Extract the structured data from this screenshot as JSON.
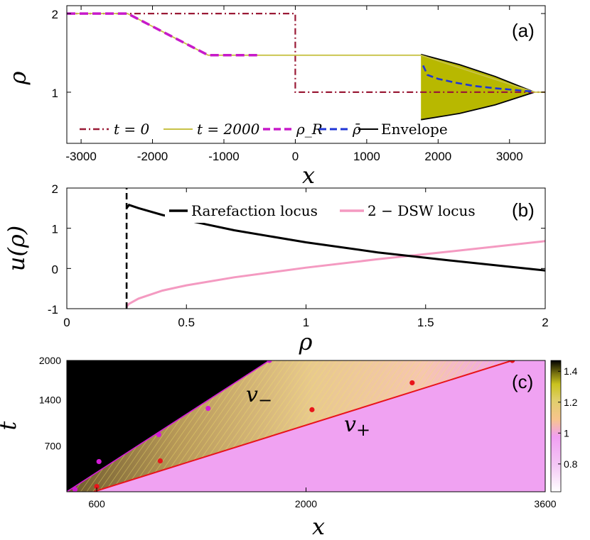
{
  "colors": {
    "t0": "#9a1a36",
    "t2000": "#c8c247",
    "rhoR": "#c71ac9",
    "rhobar": "#1f35d6",
    "envelope": "#000000",
    "dswFill": "#b8b800",
    "rarefaction": "#000000",
    "dswLocus": "#f49ac1",
    "vminus": "#d21bd6",
    "vplus": "#e8141a",
    "mapBlack": "#000000",
    "mapPink": "#f0a2f2"
  },
  "chart_data": [
    {
      "panel": "(a)",
      "type": "line",
      "xlabel": "x",
      "ylabel": "ρ",
      "xlim": [
        -3200,
        3500
      ],
      "ylim": [
        0.35,
        2.1
      ],
      "xticks": [
        "-3000",
        "-2000",
        "-1000",
        "0",
        "1000",
        "2000",
        "3000"
      ],
      "xtick_values": [
        -3000,
        -2000,
        -1000,
        0,
        1000,
        2000,
        3000
      ],
      "yticks": [
        "2",
        "1"
      ],
      "ytick_values": [
        2,
        1
      ],
      "legend": {
        "t0": "t = 0",
        "t2000": "t = 2000",
        "rhoR": "ρ_R",
        "rhobar": "ρ̄",
        "envelope": "Envelope"
      },
      "series": [
        {
          "name": "t = 0",
          "style": "dashdot",
          "x": [
            -3200,
            0,
            0,
            3500
          ],
          "y": [
            2,
            2,
            1,
            1
          ]
        },
        {
          "name": "t = 2000",
          "style": "solid",
          "x": [
            -3200,
            -2350,
            -1220,
            1760,
            1760,
            3350,
            3500
          ],
          "y": [
            2,
            2,
            1.47,
            1.47,
            1.47,
            1,
            1
          ]
        },
        {
          "name": "ρ_R",
          "style": "dashed",
          "x": [
            -3200,
            -2350,
            -1220,
            -500
          ],
          "y": [
            2,
            2,
            1.47,
            1.47
          ]
        },
        {
          "name": "ρ̄",
          "style": "dashed",
          "x": [
            1790,
            1850,
            2000,
            2250,
            2500,
            2800,
            3050,
            3300,
            3350
          ],
          "y": [
            1.34,
            1.22,
            1.17,
            1.12,
            1.08,
            1.05,
            1.03,
            1.01,
            1.0
          ]
        },
        {
          "name": "Envelope",
          "style": "solid",
          "upper": {
            "x": [
              1760,
              2300,
              2800,
              3350
            ],
            "y": [
              1.48,
              1.35,
              1.2,
              1.0
            ]
          },
          "lower": {
            "x": [
              1760,
              2300,
              2800,
              3350
            ],
            "y": [
              0.65,
              0.73,
              0.84,
              1.0
            ]
          }
        }
      ]
    },
    {
      "panel": "(b)",
      "type": "line",
      "xlabel": "ρ",
      "ylabel": "u(ρ)",
      "xlim": [
        0,
        2
      ],
      "ylim": [
        -1,
        2
      ],
      "xticks": [
        "0",
        "0.5",
        "1",
        "1.5",
        "2"
      ],
      "xtick_values": [
        0,
        0.5,
        1,
        1.5,
        2
      ],
      "yticks": [
        "2",
        "1",
        "0",
        "-1"
      ],
      "ytick_values": [
        2,
        1,
        0,
        -1
      ],
      "legend": {
        "rarefaction": "Rarefaction locus",
        "dsw": "2 − DSW locus"
      },
      "series": [
        {
          "name": "Rarefaction locus",
          "x": [
            0.25,
            0.26,
            0.3,
            0.4,
            0.5,
            0.7,
            1.0,
            1.3,
            1.6,
            2.0
          ],
          "y": [
            1.5,
            1.58,
            1.5,
            1.33,
            1.2,
            0.95,
            0.65,
            0.4,
            0.2,
            -0.05
          ]
        },
        {
          "name": "2 − DSW locus",
          "x": [
            0.25,
            0.26,
            0.3,
            0.4,
            0.5,
            0.7,
            1.0,
            1.3,
            1.6,
            2.0
          ],
          "y": [
            -0.95,
            -0.88,
            -0.75,
            -0.55,
            -0.42,
            -0.22,
            0.02,
            0.23,
            0.42,
            0.68
          ]
        },
        {
          "name": "vertical dashed",
          "x": [
            0.25,
            0.25
          ],
          "y": [
            -1,
            2
          ]
        }
      ]
    },
    {
      "panel": "(c)",
      "type": "heatmap",
      "xlabel": "x",
      "ylabel": "t",
      "xlim": [
        400,
        3600
      ],
      "ylim": [
        0,
        2000
      ],
      "xticks": [
        "600",
        "2000",
        "3600"
      ],
      "xtick_values": [
        600,
        2000,
        3600
      ],
      "yticks": [
        "2000",
        "1400",
        "700"
      ],
      "ytick_values": [
        2000,
        1400,
        700
      ],
      "colorbar": {
        "range": [
          0.62,
          1.47
        ],
        "ticks": [
          "1.4",
          "1.2",
          "1",
          "0.8"
        ],
        "tick_values": [
          1.4,
          1.2,
          1.0,
          0.8
        ]
      },
      "annotations": {
        "vminus": "v",
        "vminus_sub": "−",
        "vplus": "v",
        "vplus_sub": "+"
      },
      "vminus_points": {
        "x": [
          455,
          615,
          1015,
          1345,
          1755
        ],
        "t": [
          35,
          460,
          870,
          1270,
          2000
        ]
      },
      "vplus_points": {
        "x": [
          600,
          1025,
          2040,
          2710,
          3380
        ],
        "t": [
          80,
          470,
          1250,
          1660,
          2000
        ]
      },
      "vminus_line": {
        "x": [
          400,
          1755
        ],
        "t": [
          0,
          2000
        ]
      },
      "vplus_line": {
        "x": [
          580,
          3380
        ],
        "t": [
          0,
          2000
        ]
      }
    }
  ]
}
